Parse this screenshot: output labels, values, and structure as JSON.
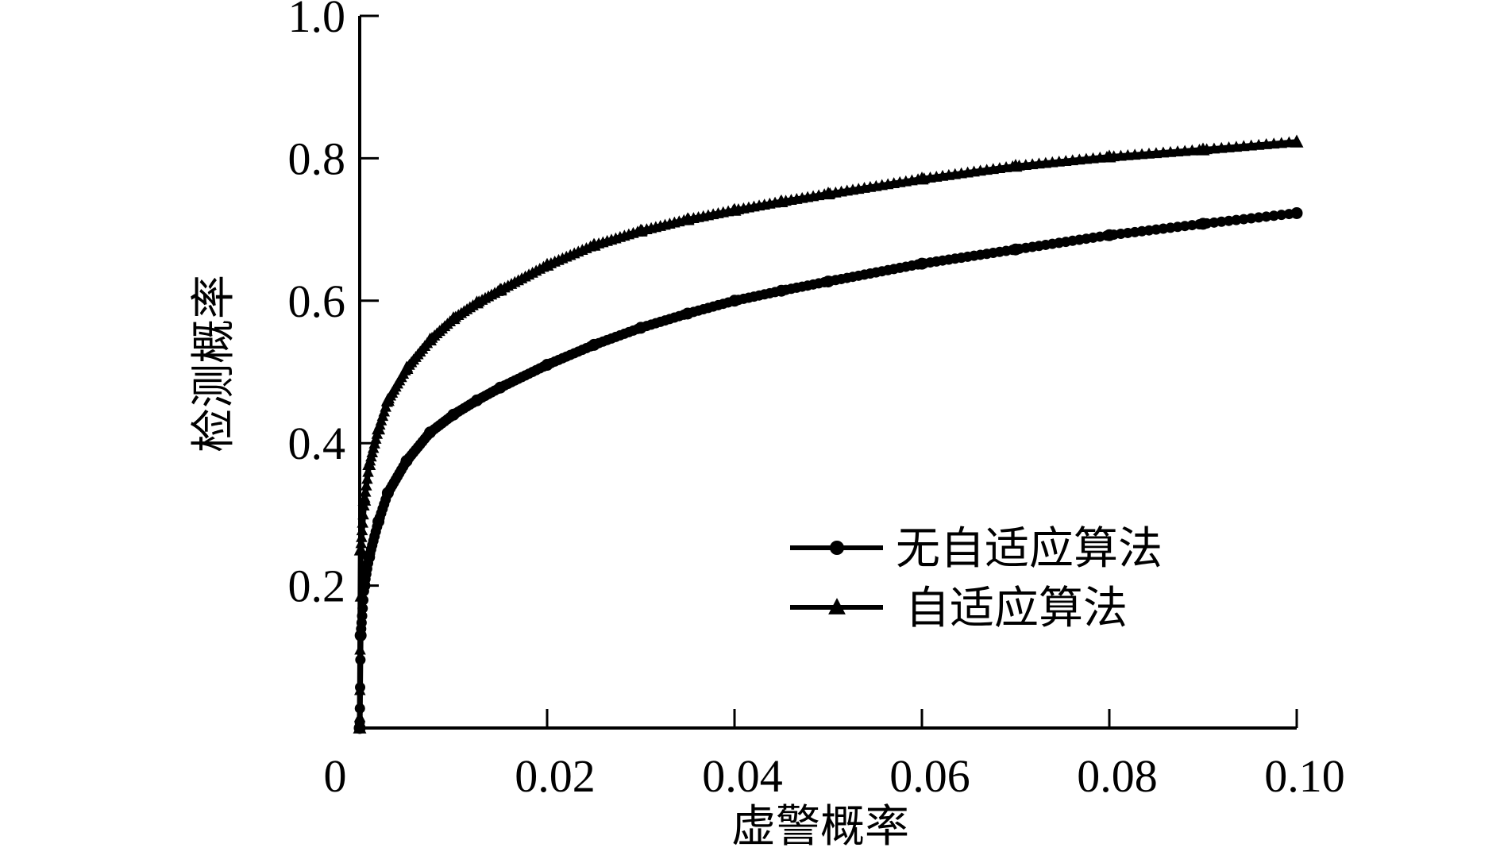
{
  "chart_data": {
    "type": "line",
    "title": "",
    "xlabel": "虚警概率",
    "ylabel": "检测概率",
    "xlim": [
      0,
      0.1
    ],
    "ylim": [
      0,
      1.0
    ],
    "x_ticks": [
      0,
      0.02,
      0.04,
      0.06,
      0.08,
      0.1
    ],
    "x_tick_labels": [
      "0",
      "0.02",
      "0.04",
      "0.06",
      "0.08",
      "0.10"
    ],
    "y_ticks": [
      0.2,
      0.4,
      0.6,
      0.8,
      1.0
    ],
    "y_tick_labels": [
      "0.2",
      "0.4",
      "0.6",
      "0.8",
      "1.0"
    ],
    "grid": false,
    "legend_position": "lower-right",
    "series": [
      {
        "name": "无自适应算法",
        "marker": "circle",
        "color": "#000000",
        "x": [
          0,
          0.0001,
          0.0005,
          0.001,
          0.002,
          0.003,
          0.005,
          0.0075,
          0.01,
          0.0125,
          0.015,
          0.02,
          0.025,
          0.03,
          0.035,
          0.04,
          0.045,
          0.05,
          0.06,
          0.07,
          0.08,
          0.09,
          0.1
        ],
        "values": [
          0,
          0.13,
          0.2,
          0.24,
          0.29,
          0.33,
          0.375,
          0.415,
          0.44,
          0.46,
          0.478,
          0.51,
          0.538,
          0.562,
          0.582,
          0.6,
          0.614,
          0.627,
          0.652,
          0.672,
          0.692,
          0.708,
          0.723
        ]
      },
      {
        "name": "自适应算法",
        "marker": "triangle",
        "color": "#000000",
        "x": [
          0,
          0.0001,
          0.0005,
          0.001,
          0.002,
          0.003,
          0.005,
          0.0075,
          0.01,
          0.0125,
          0.015,
          0.02,
          0.025,
          0.03,
          0.035,
          0.04,
          0.045,
          0.05,
          0.06,
          0.07,
          0.08,
          0.09,
          0.1
        ],
        "values": [
          0,
          0.25,
          0.32,
          0.37,
          0.42,
          0.46,
          0.505,
          0.545,
          0.575,
          0.597,
          0.615,
          0.65,
          0.678,
          0.698,
          0.714,
          0.727,
          0.739,
          0.75,
          0.771,
          0.789,
          0.802,
          0.812,
          0.823
        ]
      }
    ]
  }
}
